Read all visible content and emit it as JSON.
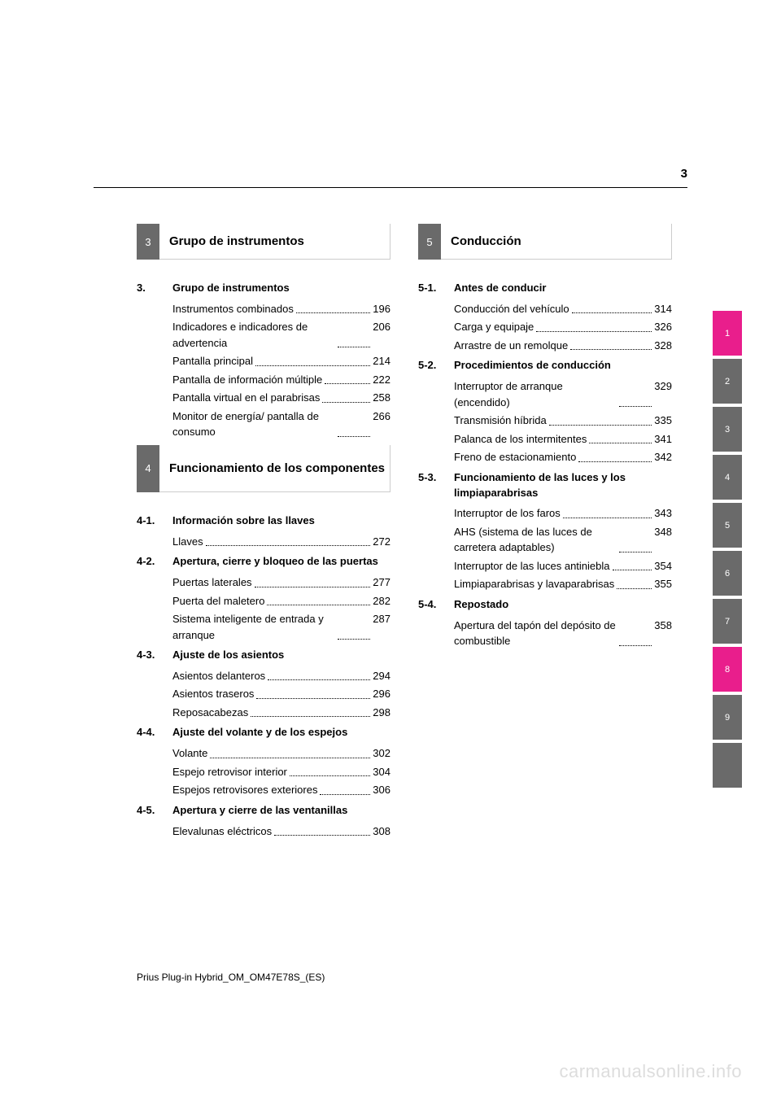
{
  "page_number": "3",
  "footer": "Prius Plug-in Hybrid_OM_OM47E78S_(ES)",
  "watermark": "carmanualsonline.info",
  "tabs": [
    {
      "label": "1",
      "cls": "pink"
    },
    {
      "label": "2",
      "cls": "gray"
    },
    {
      "label": "3",
      "cls": "gray"
    },
    {
      "label": "4",
      "cls": "gray"
    },
    {
      "label": "5",
      "cls": "gray"
    },
    {
      "label": "6",
      "cls": "gray"
    },
    {
      "label": "7",
      "cls": "gray"
    },
    {
      "label": "8",
      "cls": "pink"
    },
    {
      "label": "9",
      "cls": "gray"
    },
    {
      "label": "",
      "cls": "blank"
    }
  ],
  "left": {
    "sec1": {
      "num": "3",
      "title": "Grupo de instrumentos"
    },
    "sub1": {
      "num": "3.",
      "title": "Grupo de instrumentos",
      "items": [
        {
          "text": "Instrumentos combinados",
          "page": "196"
        },
        {
          "text": "Indicadores e indicadores de advertencia",
          "page": "206"
        },
        {
          "text": "Pantalla principal",
          "page": "214"
        },
        {
          "text": "Pantalla de información múltiple",
          "page": "222"
        },
        {
          "text": "Pantalla virtual en el parabrisas",
          "page": "258"
        },
        {
          "text": "Monitor de energía/ pantalla de consumo",
          "page": "266"
        }
      ]
    },
    "sec2": {
      "num": "4",
      "title": "Funcionamiento de los componentes"
    },
    "sub2": {
      "num": "4-1.",
      "title": "Información sobre las llaves",
      "items": [
        {
          "text": "Llaves",
          "page": "272"
        }
      ]
    },
    "sub3": {
      "num": "4-2.",
      "title": "Apertura, cierre y bloqueo de las puertas",
      "items": [
        {
          "text": "Puertas laterales",
          "page": "277"
        },
        {
          "text": "Puerta del maletero",
          "page": "282"
        },
        {
          "text": "Sistema inteligente de entrada y arranque",
          "page": "287"
        }
      ]
    },
    "sub4": {
      "num": "4-3.",
      "title": "Ajuste de los asientos",
      "items": [
        {
          "text": "Asientos delanteros",
          "page": "294"
        },
        {
          "text": "Asientos traseros",
          "page": "296"
        },
        {
          "text": "Reposacabezas",
          "page": "298"
        }
      ]
    },
    "sub5": {
      "num": "4-4.",
      "title": "Ajuste del volante y de los espejos",
      "items": [
        {
          "text": "Volante",
          "page": "302"
        },
        {
          "text": "Espejo retrovisor interior",
          "page": "304"
        },
        {
          "text": "Espejos retrovisores exteriores",
          "page": "306"
        }
      ]
    },
    "sub6": {
      "num": "4-5.",
      "title": "Apertura y cierre de las ventanillas",
      "items": [
        {
          "text": "Elevalunas eléctricos",
          "page": "308"
        }
      ]
    }
  },
  "right": {
    "sec1": {
      "num": "5",
      "title": "Conducción"
    },
    "sub1": {
      "num": "5-1.",
      "title": "Antes de conducir",
      "items": [
        {
          "text": "Conducción del vehículo",
          "page": "314"
        },
        {
          "text": "Carga y equipaje",
          "page": "326"
        },
        {
          "text": "Arrastre de un remolque",
          "page": "328"
        }
      ]
    },
    "sub2": {
      "num": "5-2.",
      "title": "Procedimientos de conducción",
      "items": [
        {
          "text": "Interruptor de arranque (encendido)",
          "page": "329"
        },
        {
          "text": "Transmisión híbrida",
          "page": "335"
        },
        {
          "text": "Palanca de los intermitentes",
          "page": "341"
        },
        {
          "text": "Freno de estacionamiento",
          "page": "342"
        }
      ]
    },
    "sub3": {
      "num": "5-3.",
      "title": "Funcionamiento de las luces y los limpiaparabrisas",
      "items": [
        {
          "text": "Interruptor de los faros",
          "page": "343"
        },
        {
          "text": "AHS (sistema de las luces de carretera adaptables)",
          "page": "348"
        },
        {
          "text": "Interruptor de las luces antiniebla",
          "page": "354"
        },
        {
          "text": "Limpiaparabrisas y lavaparabrisas",
          "page": "355"
        }
      ]
    },
    "sub4": {
      "num": "5-4.",
      "title": "Repostado",
      "items": [
        {
          "text": "Apertura del tapón del depósito de combustible",
          "page": "358"
        }
      ]
    }
  }
}
